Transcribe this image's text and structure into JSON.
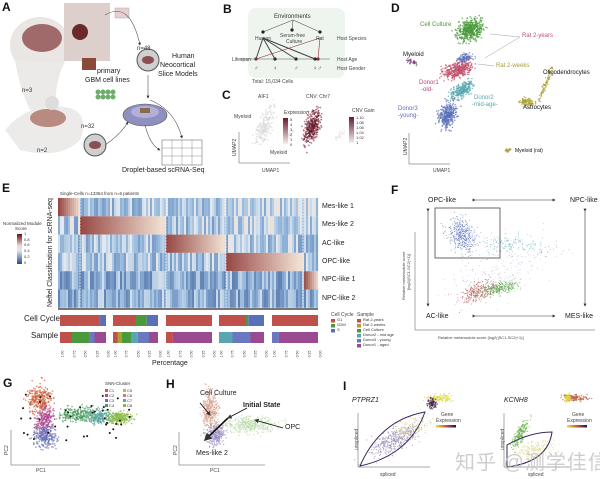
{
  "panels": {
    "A": {
      "label": "A",
      "n_human": "n=3",
      "n_rat": "n=2",
      "n_slice": "n=48",
      "n_rat_slice": "n=32",
      "cell_lines": "primary\nGBM cell lines",
      "cell_lines_1": "primary",
      "cell_lines_2": "GBM cell lines",
      "slice_models_1": "Human",
      "slice_models_2": "Neocortical",
      "slice_models_3": "Slice Models",
      "output": "Droplet-based scRNA-Seq"
    },
    "B": {
      "label": "B",
      "root": "Environments",
      "human": "Human",
      "culture_1": "Serum-free",
      "culture_2": "Culture",
      "rat": "Rat",
      "lifespan": "Lifespan",
      "host_species": "Host Species",
      "host_age": "Host Age",
      "host_gender": "Host Gender",
      "total": "Total: 15,034 Cells"
    },
    "C": {
      "label": "C",
      "gene": "AIF1",
      "cnv": "CNV: Chr7",
      "myeloid_1": "Myeloid",
      "myeloid_2": "Myeloid",
      "expression_title": "Expression",
      "expression_ticks": [
        "5",
        "4",
        "3",
        "2",
        "1",
        "0"
      ],
      "cnv_title": "CNV Gain",
      "cnv_ticks": [
        "1.10",
        "1.08",
        "1.06",
        "1.04",
        "1.02",
        "1"
      ],
      "xlabel": "UMAP1",
      "ylabel": "UMAP2"
    },
    "D": {
      "label": "D",
      "clusters": {
        "cell_culture": "Cell Culture",
        "rat_2_years": "Rat 2-years",
        "myeloid": "Myeloid",
        "rat_2_weeks": "Rat 2-weeks",
        "oligodendrocytes": "Oligodendrocytes",
        "donor1_1": "Donor1",
        "donor1_2": "-old-",
        "donor2_1": "Donor2",
        "donor2_2": "-mid-age-",
        "donor3_1": "Donor3",
        "donor3_2": "-young-",
        "astrocytes": "Astrocytes",
        "myeloid_rat": "Myeloid (rat)"
      },
      "colors": {
        "culture": "#4a9a3c",
        "rat": "#c0506a",
        "donor1": "#b04a7a",
        "donor2": "#5aa6b0",
        "donor3": "#5a70b8",
        "rat_tissue": "#a8a030",
        "myeloid": "#7a3a78"
      },
      "xlabel": "UMAP1",
      "ylabel": "UMAP2"
    },
    "E": {
      "label": "E",
      "header": "Single-Cells n=13364 from n=6 patients",
      "ylabel": "Neftel Classification for scRNA-seq",
      "rows": [
        "Mes-like 1",
        "Mes-like 2",
        "AC-like",
        "OPC-like",
        "NPC-like 1",
        "NPC-like 2"
      ],
      "colorbar_title_1": "Normalized Module",
      "colorbar_title_2": "Score",
      "colorbar_ticks": [
        "1",
        "0.8",
        "0.6",
        "0.4",
        "0.2",
        "0"
      ],
      "cell_cycle_label": "Cell Cycle",
      "sample_label": "Sample",
      "xlabel": "Percentage",
      "x_ticks": [
        "1.00",
        "0.75",
        "0.50",
        "0.25",
        "0.00"
      ],
      "cell_cycle_legend_title": "Cell Cycle",
      "cell_cycle_legend": [
        {
          "label": "G1",
          "color": "#c0504a"
        },
        {
          "label": "G2M",
          "color": "#4a9a3c"
        },
        {
          "label": "S",
          "color": "#5a70b8"
        }
      ],
      "sample_legend_title": "Sample",
      "sample_legend": [
        {
          "label": "Rat 2-years",
          "color": "#c0504a"
        },
        {
          "label": "Rat 2-weeks",
          "color": "#a8a030"
        },
        {
          "label": "Cell Culture",
          "color": "#4a9a3c"
        },
        {
          "label": "Donor2 - mid age",
          "color": "#5aa6b0"
        },
        {
          "label": "Donor3 - young",
          "color": "#6a78c0"
        },
        {
          "label": "Donor1 - aged",
          "color": "#9a4a90"
        }
      ],
      "cell_cycle_fractions": [
        [
          0.85,
          0.0,
          0.15
        ],
        [
          0.5,
          0.25,
          0.25
        ],
        [
          1.0,
          0.0,
          0.0
        ],
        [
          0.6,
          0.05,
          0.35
        ],
        [
          1.0,
          0.0,
          0.0
        ]
      ],
      "sample_fractions": [
        [
          0.25,
          0,
          0.4,
          0,
          0.1,
          0.25
        ],
        [
          0.1,
          0.1,
          0.2,
          0.15,
          0.25,
          0.2
        ],
        [
          0.15,
          0,
          0,
          0,
          0,
          0.85
        ],
        [
          0,
          0,
          0,
          0.3,
          0.4,
          0.3
        ],
        [
          0,
          0,
          0,
          0,
          0.15,
          0.85
        ]
      ]
    },
    "F": {
      "label": "F",
      "opc": "OPC-like",
      "npc": "NPC-like",
      "ac": "AC-like",
      "mes": "MES-like",
      "xlabel": "Relative metamodule score [log2(|SC1-SC2|+1)]",
      "ylabel_1": "Relative metamodule score",
      "ylabel_2": "[log2(|SC1-SC2|+1)]"
    },
    "G": {
      "label": "G",
      "legend_title": "SNN-Cluster",
      "clusters": [
        {
          "label": "C1",
          "color": "#d0603a"
        },
        {
          "label": "C2",
          "color": "#b04a90"
        },
        {
          "label": "C3",
          "color": "#6a70b8"
        },
        {
          "label": "C4",
          "color": "#4a9a5a"
        },
        {
          "label": "C5",
          "color": "#d8b040"
        },
        {
          "label": "C6",
          "color": "#c07aa0"
        },
        {
          "label": "C7",
          "color": "#5aa6a0"
        },
        {
          "label": "C8",
          "color": "#8ab840"
        }
      ],
      "xlabel": "PC1",
      "ylabel": "PC2"
    },
    "H": {
      "label": "H",
      "cell_culture": "Cell Culture",
      "initial_state": "Initial State",
      "opc": "OPC",
      "mes": "Mes-like 2",
      "xlabel": "PC1",
      "ylabel": "PC2"
    },
    "I": {
      "label": "I",
      "gene1": "PTPRZ1",
      "gene2": "KCNH8",
      "legend_1": "Gene",
      "legend_2": "Expression",
      "xlabel": "spliced",
      "ylabel": "unspliced"
    }
  },
  "watermark": "知乎 @测学佳信"
}
